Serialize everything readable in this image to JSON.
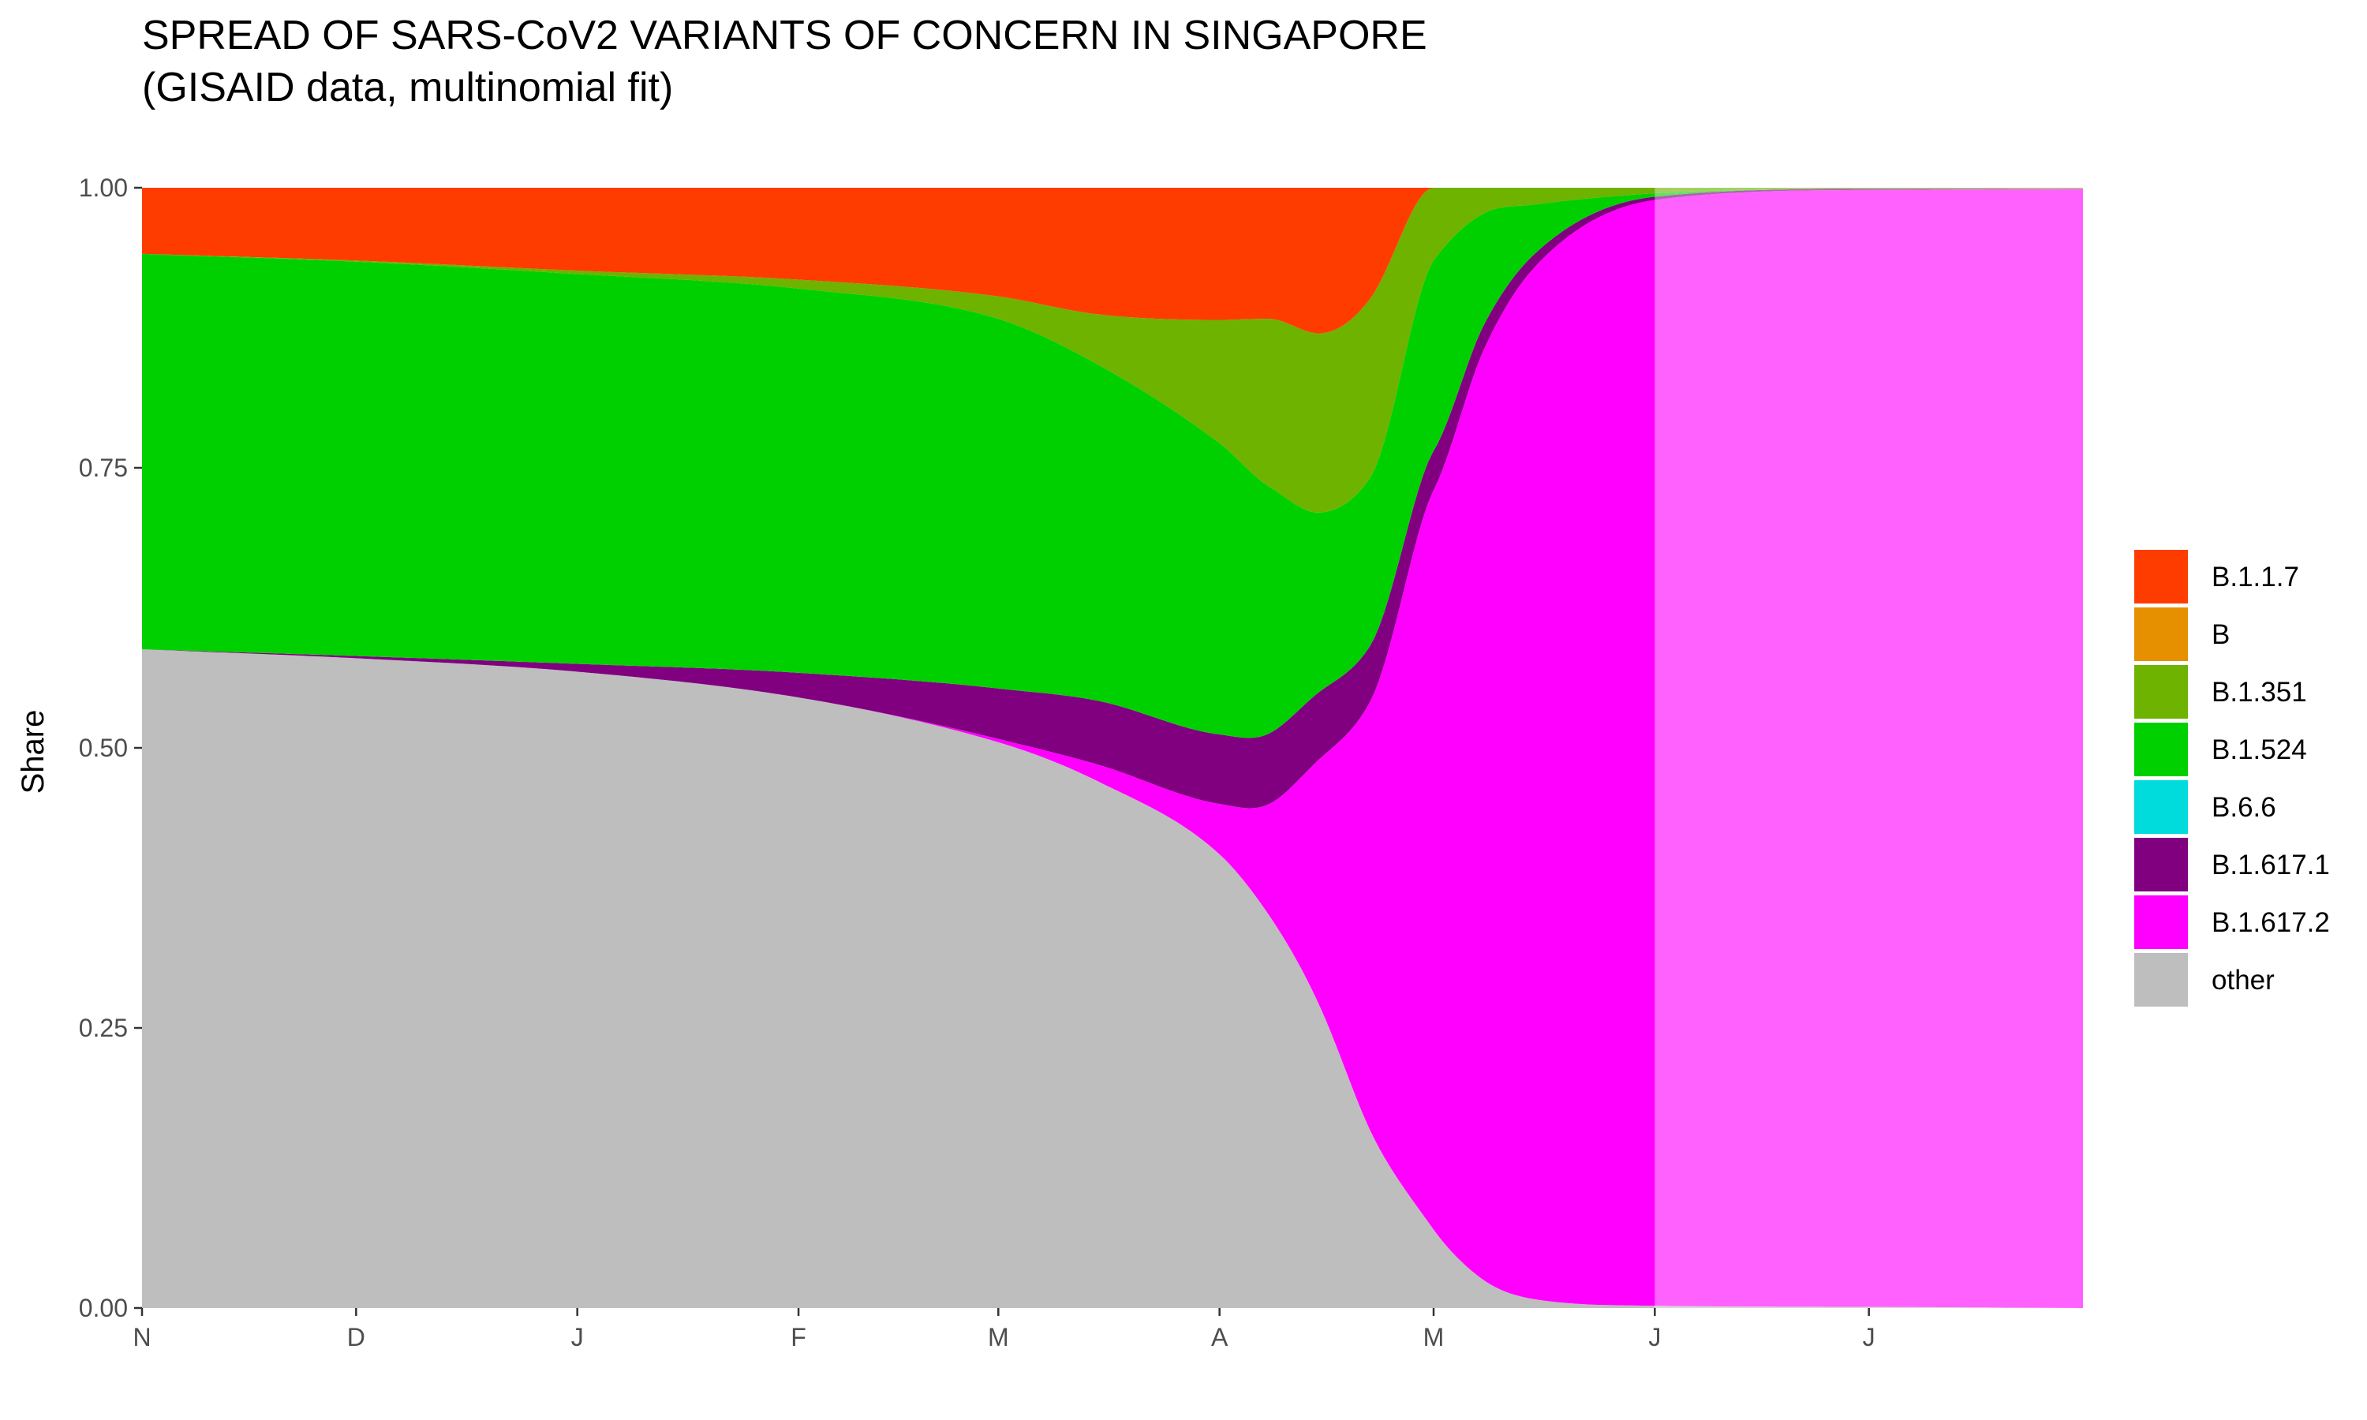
{
  "chart_data": {
    "type": "area",
    "stacked": true,
    "normalized": true,
    "title": "SPREAD OF SARS-CoV2 VARIANTS OF CONCERN IN SINGAPORE",
    "subtitle": "(GISAID data, multinomial fit)",
    "xlabel": "",
    "ylabel": "Share",
    "xlim": [
      "2020-11-01",
      "2021-07-31"
    ],
    "ylim": [
      0,
      1
    ],
    "x_ticks": [
      {
        "label": "N",
        "date": "2020-11-01"
      },
      {
        "label": "D",
        "date": "2020-12-01"
      },
      {
        "label": "J",
        "date": "2021-01-01"
      },
      {
        "label": "F",
        "date": "2021-02-01"
      },
      {
        "label": "M",
        "date": "2021-03-01"
      },
      {
        "label": "A",
        "date": "2021-04-01"
      },
      {
        "label": "M",
        "date": "2021-05-01"
      },
      {
        "label": "J",
        "date": "2021-06-01"
      },
      {
        "label": "J",
        "date": "2021-07-01"
      }
    ],
    "y_ticks": [
      "0.00",
      "0.25",
      "0.50",
      "0.75",
      "1.00"
    ],
    "grid": false,
    "legend_position": "right",
    "data_end_date": "2021-06-01",
    "projection_lighter": true,
    "x": [
      "2020-11-01",
      "2020-12-01",
      "2021-01-01",
      "2021-02-01",
      "2021-03-01",
      "2021-03-15",
      "2021-04-01",
      "2021-04-08",
      "2021-04-15",
      "2021-04-22",
      "2021-05-01",
      "2021-05-08",
      "2021-05-15",
      "2021-06-01",
      "2021-07-01",
      "2021-07-31"
    ],
    "series": [
      {
        "name": "other",
        "color": "#bebebe",
        "values": [
          0.588,
          0.58,
          0.568,
          0.545,
          0.505,
          0.47,
          0.405,
          0.35,
          0.27,
          0.16,
          0.07,
          0.025,
          0.008,
          0.002,
          0.001,
          0.0
        ]
      },
      {
        "name": "B.1.617.2",
        "color": "#ff00ff",
        "values": [
          0.0,
          0.0,
          0.0,
          0.0,
          0.003,
          0.015,
          0.045,
          0.1,
          0.22,
          0.38,
          0.66,
          0.83,
          0.92,
          0.987,
          0.997,
          0.999
        ]
      },
      {
        "name": "B.1.617.1",
        "color": "#800080",
        "values": [
          0.0,
          0.002,
          0.007,
          0.022,
          0.045,
          0.057,
          0.062,
          0.063,
          0.06,
          0.05,
          0.035,
          0.022,
          0.012,
          0.003,
          0.001,
          0.0
        ]
      },
      {
        "name": "B.6.6",
        "color": "#00dcdc",
        "values": [
          0,
          0,
          0,
          0,
          0,
          0,
          0,
          0,
          0,
          0,
          0,
          0,
          0,
          0,
          0,
          0
        ]
      },
      {
        "name": "B.1.524",
        "color": "#00d000",
        "values": [
          0.353,
          0.352,
          0.348,
          0.343,
          0.33,
          0.3,
          0.26,
          0.22,
          0.16,
          0.15,
          0.17,
          0.1,
          0.045,
          0.003,
          0.0,
          0.0
        ]
      },
      {
        "name": "B.1.351",
        "color": "#6db300",
        "values": [
          0.0,
          0.001,
          0.003,
          0.008,
          0.02,
          0.045,
          0.11,
          0.15,
          0.16,
          0.16,
          0.065,
          0.023,
          0.015,
          0.005,
          0.001,
          0.001
        ]
      },
      {
        "name": "B",
        "color": "#e69000",
        "values": [
          0,
          0,
          0,
          0,
          0,
          0,
          0,
          0,
          0,
          0,
          0,
          0,
          0,
          0,
          0,
          0
        ]
      },
      {
        "name": "B.1.1.7",
        "color": "#ff3c00",
        "values": [
          0.059,
          0.065,
          0.074,
          0.082,
          0.097,
          0.113,
          0.118,
          0.117,
          0.13,
          0.1,
          0.0,
          0.0,
          0.0,
          0.0,
          0.0,
          0.0
        ]
      }
    ],
    "legend": [
      "B.1.1.7",
      "B",
      "B.1.351",
      "B.1.524",
      "B.6.6",
      "B.1.617.1",
      "B.1.617.2",
      "other"
    ]
  }
}
